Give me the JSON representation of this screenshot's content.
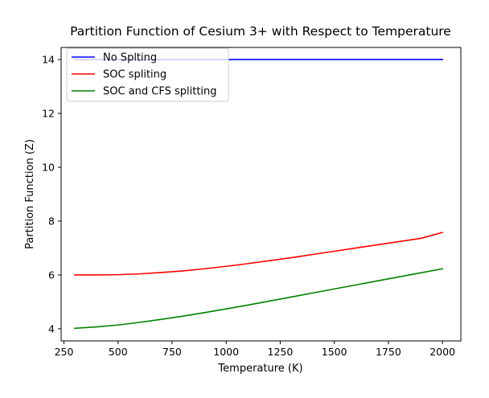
{
  "chart_data": {
    "type": "line",
    "title": "Partition Function of Cesium 3+ with Respect to Temperature",
    "xlabel": "Temperature (K)",
    "ylabel": "Partition Function (Z)",
    "xlim": [
      237,
      2085
    ],
    "ylim": [
      3.55,
      14.45
    ],
    "xticks": [
      250,
      500,
      750,
      1000,
      1250,
      1500,
      1750,
      2000
    ],
    "yticks": [
      4,
      6,
      8,
      10,
      12,
      14
    ],
    "grid": false,
    "legend_position": "top-left",
    "series": [
      {
        "name": "No Splting",
        "color": "#0000ff",
        "x": [
          300,
          500,
          750,
          1000,
          1250,
          1500,
          1750,
          2000
        ],
        "y": [
          14,
          14,
          14,
          14,
          14,
          14,
          14,
          14
        ]
      },
      {
        "name": "SOC spliting",
        "color": "#ff0000",
        "x": [
          300,
          400,
          500,
          600,
          700,
          800,
          900,
          1000,
          1100,
          1200,
          1300,
          1400,
          1500,
          1600,
          1700,
          1800,
          1900,
          2000
        ],
        "y": [
          6.0,
          6.0,
          6.01,
          6.04,
          6.09,
          6.15,
          6.23,
          6.32,
          6.42,
          6.53,
          6.64,
          6.76,
          6.88,
          7.0,
          7.12,
          7.24,
          7.36,
          7.58
        ]
      },
      {
        "name": "SOC and CFS splitting",
        "color": "#008000",
        "x": [
          300,
          400,
          500,
          600,
          700,
          800,
          900,
          1000,
          1100,
          1200,
          1300,
          1400,
          1500,
          1600,
          1700,
          1800,
          1900,
          2000
        ],
        "y": [
          4.02,
          4.07,
          4.14,
          4.24,
          4.35,
          4.47,
          4.6,
          4.74,
          4.88,
          5.03,
          5.18,
          5.33,
          5.48,
          5.63,
          5.78,
          5.93,
          6.08,
          6.23
        ]
      }
    ]
  }
}
